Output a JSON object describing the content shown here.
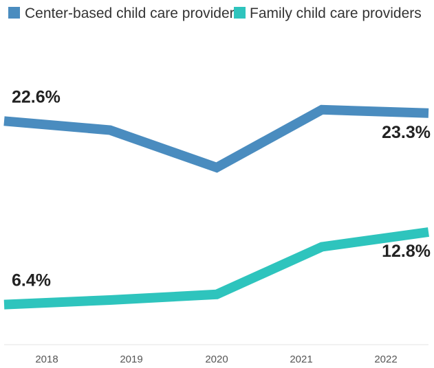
{
  "chart_data": {
    "type": "line",
    "title": "",
    "xlabel": "",
    "ylabel": "",
    "categories": [
      "2018",
      "2019",
      "2020",
      "2021",
      "2022"
    ],
    "ylim": [
      0,
      30
    ],
    "grid": false,
    "legend_position": "top",
    "series": [
      {
        "name": "Center-based child care providers",
        "color": "#4a8cbf",
        "values": [
          22.6,
          21.8,
          18.5,
          23.6,
          23.3
        ],
        "data_labels": [
          "22.6%",
          "",
          "",
          "",
          "23.3%"
        ]
      },
      {
        "name": "Family child care providers",
        "color": "#2ec4bd",
        "values": [
          6.4,
          6.8,
          7.3,
          11.5,
          12.8
        ],
        "data_labels": [
          "6.4%",
          "",
          "",
          "",
          "12.8%"
        ]
      }
    ]
  }
}
